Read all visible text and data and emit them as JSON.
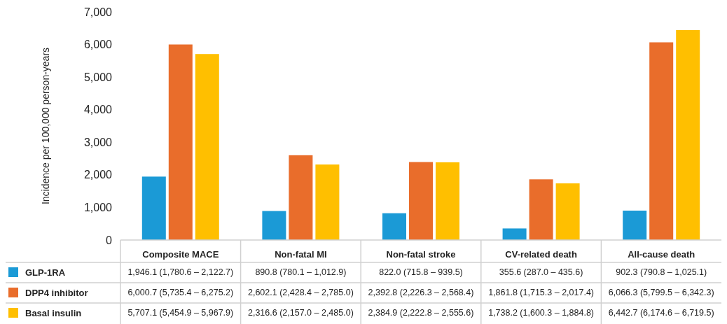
{
  "chart_data": {
    "type": "bar",
    "ylabel": "Incidence per 100,000 person-years",
    "categories": [
      "Composite MACE",
      "Non-fatal MI",
      "Non-fatal stroke",
      "CV-related death",
      "All-cause death"
    ],
    "series": [
      {
        "name": "GLP-1RA",
        "color": "#1b9ad6",
        "values": [
          1946.1,
          890.8,
          822.0,
          355.6,
          902.3
        ],
        "value_labels": [
          "1,946.1 (1,780.6 – 2,122.7)",
          "890.8 (780.1 – 1,012.9)",
          "822.0 (715.8 – 939.5)",
          "355.6 (287.0 – 435.6)",
          "902.3 (790.8 – 1,025.1)"
        ]
      },
      {
        "name": "DPP4 inhibitor",
        "color": "#e96d2b",
        "values": [
          6000.7,
          2602.1,
          2392.8,
          1861.8,
          6066.3
        ],
        "value_labels": [
          "6,000.7 (5,735.4 – 6,275.2)",
          "2,602.1 (2,428.4 – 2,785.0)",
          "2,392.8 (2,226.3 – 2,568.4)",
          "1,861.8 (1,715.3 – 2,017.4)",
          "6,066.3 (5,799.5 – 6,342.3)"
        ]
      },
      {
        "name": "Basal insulin",
        "color": "#ffbf00",
        "values": [
          5707.1,
          2316.6,
          2384.9,
          1738.2,
          6442.7
        ],
        "value_labels": [
          "5,707.1 (5,454.9 – 5,967.9)",
          "2,316.6 (2,157.0 – 2,485.0)",
          "2,384.9 (2,222.8 – 2,555.6)",
          "1,738.2 (1,600.3 – 1,884.8)",
          "6,442.7 (6,174.6 – 6,719.5)"
        ]
      }
    ],
    "ylim": [
      0,
      7000
    ],
    "yticks": [
      {
        "value": 0,
        "label": "0"
      },
      {
        "value": 1000,
        "label": "1,000"
      },
      {
        "value": 2000,
        "label": "2,000"
      },
      {
        "value": 3000,
        "label": "3,000"
      },
      {
        "value": 4000,
        "label": "4,000"
      },
      {
        "value": 5000,
        "label": "5,000"
      },
      {
        "value": 6000,
        "label": "6,000"
      },
      {
        "value": 7000,
        "label": "7,000"
      }
    ],
    "legend": "bottom left"
  }
}
